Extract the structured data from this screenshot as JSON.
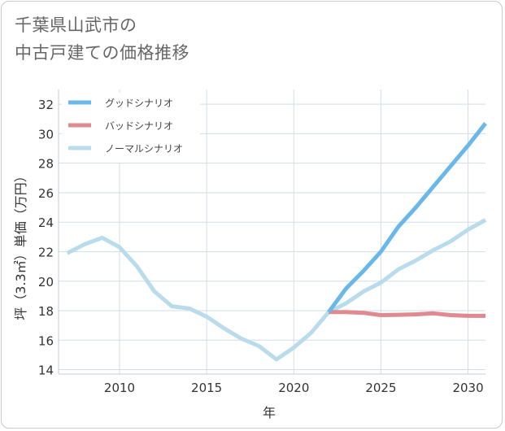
{
  "title": {
    "line1": "千葉県山武市の",
    "line2": "中古戸建ての価格推移"
  },
  "chart_data": {
    "type": "line",
    "xlabel": "年",
    "ylabel": "坪（3.3㎡）単価（万円）",
    "xlim": [
      2006.5,
      2031
    ],
    "ylim": [
      13.7,
      33
    ],
    "xticks": [
      2010,
      2015,
      2020,
      2025,
      2030
    ],
    "yticks": [
      14,
      16,
      18,
      20,
      22,
      24,
      26,
      28,
      30,
      32
    ],
    "grid": true,
    "legend_position": "top-left",
    "series": [
      {
        "name": "グッドシナリオ",
        "color": "#6ab8ea",
        "x": [
          2022,
          2023,
          2024,
          2025,
          2026,
          2027,
          2028,
          2029,
          2030,
          2031
        ],
        "y": [
          17.9,
          19.5,
          20.7,
          22.0,
          23.7,
          25.0,
          26.4,
          27.8,
          29.2,
          30.7
        ]
      },
      {
        "name": "バッドシナリオ",
        "color": "#df8a91",
        "x": [
          2022,
          2023,
          2024,
          2025,
          2026,
          2027,
          2028,
          2029,
          2030,
          2031
        ],
        "y": [
          17.9,
          17.9,
          17.85,
          17.7,
          17.72,
          17.75,
          17.82,
          17.7,
          17.65,
          17.65
        ]
      },
      {
        "name": "ノーマルシナリオ",
        "color": "#b9dcec",
        "x": [
          2007,
          2008,
          2009,
          2010,
          2011,
          2012,
          2013,
          2014,
          2015,
          2016,
          2017,
          2018,
          2019,
          2020,
          2021,
          2022,
          2023,
          2024,
          2025,
          2026,
          2027,
          2028,
          2029,
          2030,
          2031
        ],
        "y": [
          21.9,
          22.5,
          22.95,
          22.3,
          21.0,
          19.3,
          18.3,
          18.15,
          17.6,
          16.8,
          16.1,
          15.6,
          14.7,
          15.5,
          16.5,
          17.9,
          18.5,
          19.3,
          19.9,
          20.8,
          21.4,
          22.1,
          22.7,
          23.5,
          24.15
        ]
      }
    ]
  }
}
